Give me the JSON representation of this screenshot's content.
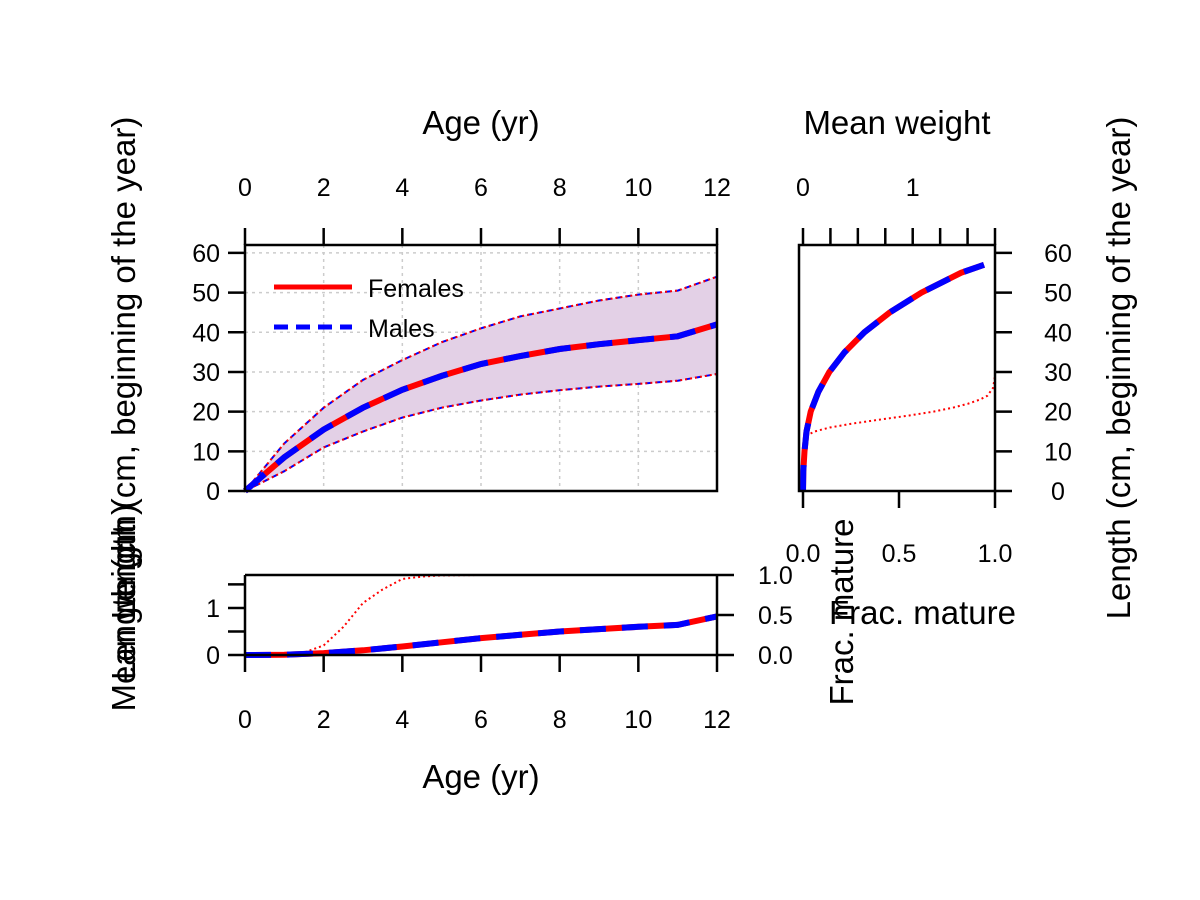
{
  "colors": {
    "females": "#ff0000",
    "males": "#0000ff",
    "band": "#e3d0e6",
    "grid": "#cccccc"
  },
  "legend": {
    "position": "top-left",
    "entries": [
      {
        "label": "Females",
        "color": "#ff0000",
        "style": "solid"
      },
      {
        "label": "Males",
        "color": "#0000ff",
        "style": "dashed"
      }
    ]
  },
  "chart_data": [
    {
      "id": "length_at_age",
      "type": "line",
      "x_top_label": "Age (yr)",
      "ylabel": "Length (cm, beginning of the year)",
      "xlim": [
        0,
        12
      ],
      "ylim": [
        0,
        62
      ],
      "x_ticks": [
        0,
        2,
        4,
        6,
        8,
        10,
        12
      ],
      "y_ticks": [
        0,
        10,
        20,
        30,
        40,
        50,
        60
      ],
      "grid": true,
      "x": [
        0,
        1,
        2,
        3,
        4,
        5,
        6,
        7,
        8,
        9,
        10,
        11,
        12
      ],
      "series": [
        {
          "name": "Females",
          "color": "#ff0000",
          "style": "solid",
          "values": [
            0,
            8.5,
            15.5,
            21,
            25.5,
            29,
            32,
            34,
            35.8,
            37,
            38,
            39,
            42
          ],
          "upper": [
            0,
            12,
            21,
            28,
            33,
            37.5,
            41,
            44,
            46,
            48,
            49.5,
            50.5,
            54
          ],
          "lower": [
            0,
            5,
            11,
            15,
            18.5,
            21,
            22.8,
            24.3,
            25.4,
            26.3,
            27,
            27.8,
            29.5
          ]
        },
        {
          "name": "Males",
          "color": "#0000ff",
          "style": "dashed",
          "values": [
            0,
            8.5,
            15.5,
            21,
            25.5,
            29,
            32,
            34,
            35.8,
            37,
            38,
            39,
            42
          ],
          "upper": [
            0,
            12,
            21,
            28,
            33,
            37.5,
            41,
            44,
            46,
            48,
            49.5,
            50.5,
            54
          ],
          "lower": [
            0,
            5,
            11,
            15,
            18.5,
            21,
            22.8,
            24.3,
            25.4,
            26.3,
            27,
            27.8,
            29.5
          ]
        }
      ]
    },
    {
      "id": "length_vs_weight_maturity",
      "type": "line",
      "title": "Mean weight",
      "xlabel": "Frac. mature",
      "ylabel": "Length (cm, beginning of the year)",
      "x_top_lim": [
        0,
        1.75
      ],
      "x_top_ticks": [
        0,
        1
      ],
      "x_top_minor_ticks": [
        0.25,
        0.5,
        0.75,
        1.25,
        1.5,
        1.75
      ],
      "x_bottom_lim": [
        0,
        1
      ],
      "x_bottom_ticks": [
        "0.0",
        "0.5",
        "1.0"
      ],
      "ylim": [
        0,
        62
      ],
      "y_ticks": [
        0,
        10,
        20,
        30,
        40,
        50,
        60
      ],
      "weight_curve": {
        "length": [
          0,
          5,
          10,
          15,
          20,
          25,
          30,
          35,
          40,
          45,
          50,
          55,
          57
        ],
        "weight": [
          0.0,
          0.003,
          0.014,
          0.032,
          0.07,
          0.14,
          0.24,
          0.38,
          0.56,
          0.79,
          1.08,
          1.44,
          1.65
        ]
      },
      "maturity_curve": {
        "length": [
          0,
          5,
          12,
          14,
          15,
          16,
          17,
          18,
          19,
          20,
          21,
          22,
          23,
          24,
          26,
          29
        ],
        "frac_mature": [
          0.01,
          0.01,
          0.01,
          0.02,
          0.06,
          0.14,
          0.26,
          0.4,
          0.55,
          0.68,
          0.78,
          0.86,
          0.92,
          0.96,
          0.99,
          1.0
        ]
      }
    },
    {
      "id": "weight_maturity_at_age",
      "type": "line",
      "xlabel": "Age (yr)",
      "ylabel": "Mean weight",
      "overlay_label": "Length (cm)",
      "y2label": "Frac. mature",
      "y2_extra_label": "Frac. mature",
      "xlim": [
        0,
        12
      ],
      "ylim": [
        0,
        1.7
      ],
      "y_ticks": [
        0,
        1
      ],
      "y_minor_ticks": [
        0.5,
        1.5
      ],
      "y2lim": [
        0,
        1
      ],
      "y2_ticks": [
        "0.0",
        "0.5",
        "1.0"
      ],
      "x_ticks": [
        0,
        2,
        4,
        6,
        8,
        10,
        12
      ],
      "x": [
        0,
        1,
        2,
        3,
        4,
        5,
        6,
        7,
        8,
        9,
        10,
        11,
        12
      ],
      "weight_values": [
        0.0,
        0.005,
        0.04,
        0.1,
        0.18,
        0.27,
        0.36,
        0.43,
        0.5,
        0.55,
        0.6,
        0.64,
        0.82
      ],
      "maturity_x": [
        0,
        1,
        1.5,
        2,
        2.5,
        3,
        3.5,
        4,
        4.5,
        5,
        6,
        7,
        8,
        9,
        10,
        11
      ],
      "maturity_values": [
        0.01,
        0.01,
        0.03,
        0.12,
        0.35,
        0.65,
        0.82,
        0.95,
        0.98,
        0.995,
        1.0,
        1.0,
        1.0,
        1.0,
        1.0,
        1.0
      ]
    }
  ]
}
